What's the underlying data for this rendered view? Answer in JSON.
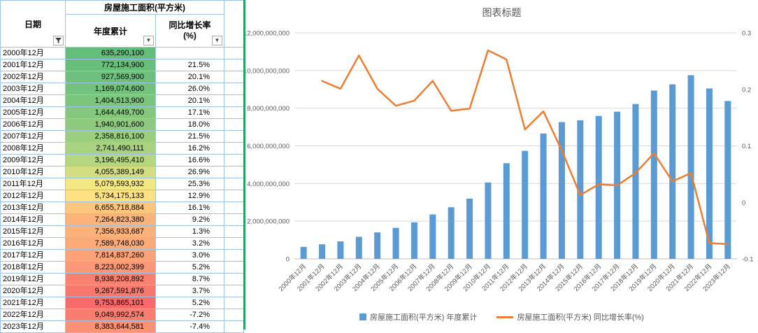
{
  "icons": {
    "dropdown": "▼",
    "funnel": "funnel-icon"
  },
  "colors": {
    "divider": "#21A366",
    "table_border": "#9DC3E6"
  },
  "table": {
    "title": "房屋施工面积(平方米)",
    "col_date": "日期",
    "col_cumulative": "年度累计",
    "col_growth": "同比增长率\n(%)",
    "color_scale": {
      "min": "#63BE7B",
      "mid": "#FFEB84",
      "max": "#F8696B"
    },
    "rows": [
      {
        "date": "2000年12月",
        "cumulative": "635,290,100",
        "growth": ""
      },
      {
        "date": "2001年12月",
        "cumulative": "772,134,900",
        "growth": "21.5%"
      },
      {
        "date": "2002年12月",
        "cumulative": "927,569,900",
        "growth": "20.1%"
      },
      {
        "date": "2003年12月",
        "cumulative": "1,169,074,600",
        "growth": "26.0%"
      },
      {
        "date": "2004年12月",
        "cumulative": "1,404,513,900",
        "growth": "20.1%"
      },
      {
        "date": "2005年12月",
        "cumulative": "1,644,449,700",
        "growth": "17.1%"
      },
      {
        "date": "2006年12月",
        "cumulative": "1,940,901,600",
        "growth": "18.0%"
      },
      {
        "date": "2007年12月",
        "cumulative": "2,358,816,100",
        "growth": "21.5%"
      },
      {
        "date": "2008年12月",
        "cumulative": "2,741,490,111",
        "growth": "16.2%"
      },
      {
        "date": "2009年12月",
        "cumulative": "3,196,495,410",
        "growth": "16.6%"
      },
      {
        "date": "2010年12月",
        "cumulative": "4,055,389,149",
        "growth": "26.9%"
      },
      {
        "date": "2011年12月",
        "cumulative": "5,079,593,932",
        "growth": "25.3%"
      },
      {
        "date": "2012年12月",
        "cumulative": "5,734,175,133",
        "growth": "12.9%"
      },
      {
        "date": "2013年12月",
        "cumulative": "6,655,718,884",
        "growth": "16.1%"
      },
      {
        "date": "2014年12月",
        "cumulative": "7,264,823,380",
        "growth": "9.2%"
      },
      {
        "date": "2015年12月",
        "cumulative": "7,356,933,687",
        "growth": "1.3%"
      },
      {
        "date": "2016年12月",
        "cumulative": "7,589,748,030",
        "growth": "3.2%"
      },
      {
        "date": "2017年12月",
        "cumulative": "7,814,837,260",
        "growth": "3.0%"
      },
      {
        "date": "2018年12月",
        "cumulative": "8,223,002,399",
        "growth": "5.2%"
      },
      {
        "date": "2019年12月",
        "cumulative": "8,938,208,892",
        "growth": "8.7%"
      },
      {
        "date": "2020年12月",
        "cumulative": "9,267,591,876",
        "growth": "3.7%"
      },
      {
        "date": "2021年12月",
        "cumulative": "9,753,865,101",
        "growth": "5.2%"
      },
      {
        "date": "2022年12月",
        "cumulative": "9,049,992,574",
        "growth": "-7.2%"
      },
      {
        "date": "2023年12月",
        "cumulative": "8,383,644,581",
        "growth": "-7.4%"
      }
    ]
  },
  "chart_data": {
    "type": "combo",
    "title": "图表标题",
    "categories": [
      "2000年12月",
      "2001年12月",
      "2002年12月",
      "2003年12月",
      "2004年12月",
      "2005年12月",
      "2006年12月",
      "2007年12月",
      "2008年12月",
      "2009年12月",
      "2010年12月",
      "2011年12月",
      "2012年12月",
      "2013年12月",
      "2014年12月",
      "2015年12月",
      "2016年12月",
      "2017年12月",
      "2018年12月",
      "2019年12月",
      "2020年12月",
      "2021年12月",
      "2022年12月",
      "2023年12月"
    ],
    "series": [
      {
        "name": "房屋施工面积(平方米) 年度累计",
        "chart_type": "bar",
        "axis": "left",
        "color": "#5B9BD5",
        "values": [
          635290100,
          772134900,
          927569900,
          1169074600,
          1404513900,
          1644449700,
          1940901600,
          2358816100,
          2741490111,
          3196495410,
          4055389149,
          5079593932,
          5734175133,
          6655718884,
          7264823380,
          7356933687,
          7589748030,
          7814837260,
          8223002399,
          8938208892,
          9267591876,
          9753865101,
          9049992574,
          8383644581
        ]
      },
      {
        "name": "房屋施工面积(平方米) 同比增长率(%)",
        "chart_type": "line",
        "axis": "right",
        "color": "#ED7D31",
        "values": [
          null,
          0.215,
          0.201,
          0.26,
          0.201,
          0.171,
          0.18,
          0.215,
          0.162,
          0.166,
          0.269,
          0.253,
          0.129,
          0.161,
          0.092,
          0.013,
          0.032,
          0.03,
          0.052,
          0.087,
          0.037,
          0.052,
          -0.072,
          -0.074
        ]
      }
    ],
    "left_axis": {
      "min": 0,
      "max": 12000000000,
      "step": 2000000000
    },
    "right_axis": {
      "min": -0.1,
      "max": 0.3,
      "step": 0.1
    },
    "legend_position": "bottom",
    "grid": true
  }
}
